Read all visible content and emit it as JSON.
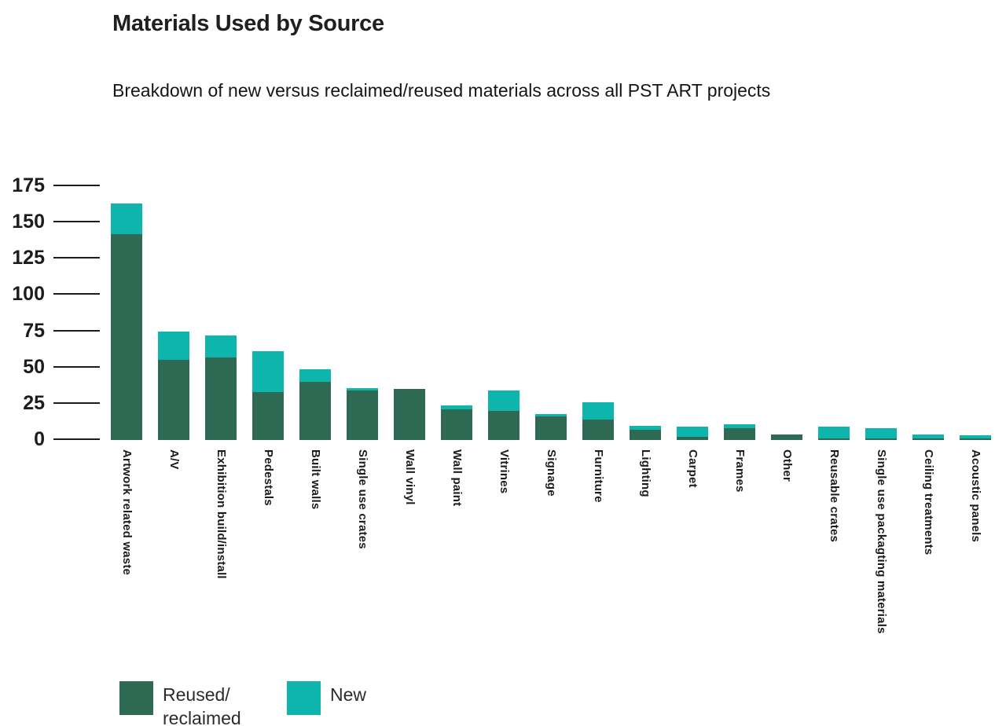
{
  "header": {
    "title": "Materials Used by Source",
    "subtitle": "Breakdown of new versus reclaimed/reused materials across all PST ART projects"
  },
  "colors": {
    "reused": "#2e6a53",
    "new": "#0db5ac",
    "text": "#1c1c1c"
  },
  "legend": [
    {
      "label": "Reused/\nreclaimed",
      "color": "#2e6a53"
    },
    {
      "label": "New",
      "color": "#0db5ac"
    }
  ],
  "chart_data": {
    "type": "bar",
    "stacked": true,
    "title": "Materials Used by Source",
    "subtitle": "Breakdown of new versus reclaimed/reused materials across all PST ART projects",
    "xlabel": "",
    "ylabel": "",
    "ylim": [
      0,
      175
    ],
    "yticks": [
      0,
      25,
      50,
      75,
      100,
      125,
      150,
      175
    ],
    "grid": false,
    "legend_position": "bottom",
    "categories": [
      "Artwork related waste",
      "A/V",
      "Exhibition build/install",
      "Pedestals",
      "Built walls",
      "Single use crates",
      "Wall vinyl",
      "Wall paint",
      "Vitrines",
      "Signage",
      "Furniture",
      "Lighting",
      "Carpet",
      "Frames",
      "Other",
      "Reusable crates",
      "Single use packagting materials",
      "Ceiling treatments",
      "Acoustic panels"
    ],
    "series": [
      {
        "name": "Reused/reclaimed",
        "color": "#2e6a53",
        "values": [
          142,
          55,
          57,
          33,
          40,
          34,
          35,
          21,
          20,
          16,
          14,
          7,
          2,
          8,
          4,
          1,
          1,
          1,
          1
        ]
      },
      {
        "name": "New",
        "color": "#0db5ac",
        "values": [
          21,
          20,
          15,
          28,
          9,
          2,
          0,
          3,
          14,
          2,
          12,
          3,
          7,
          3,
          0,
          8,
          7,
          3,
          2
        ]
      }
    ]
  }
}
